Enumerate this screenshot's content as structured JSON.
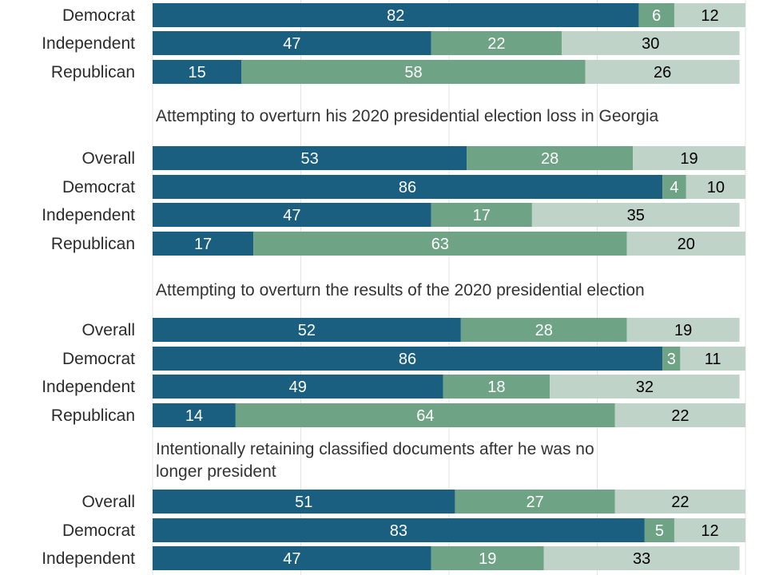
{
  "chart_data": {
    "type": "bar",
    "orientation": "horizontal",
    "stacked": true,
    "xlim": [
      0,
      100
    ],
    "colors": [
      "#1a5e80",
      "#6fa386",
      "#bfd3c8"
    ],
    "label_colors": [
      "#ffffff",
      "#ffffff",
      "#000000"
    ],
    "groups": [
      {
        "title": "",
        "rows": [
          {
            "label": "Democrat",
            "values": [
              82,
              6,
              12
            ]
          },
          {
            "label": "Independent",
            "values": [
              47,
              22,
              30
            ]
          },
          {
            "label": "Republican",
            "values": [
              15,
              58,
              26
            ]
          }
        ]
      },
      {
        "title": "Attempting to overturn his 2020 presidential election loss in Georgia",
        "rows": [
          {
            "label": "Overall",
            "values": [
              53,
              28,
              19
            ]
          },
          {
            "label": "Democrat",
            "values": [
              86,
              4,
              10
            ]
          },
          {
            "label": "Independent",
            "values": [
              47,
              17,
              35
            ]
          },
          {
            "label": "Republican",
            "values": [
              17,
              63,
              20
            ]
          }
        ]
      },
      {
        "title": "Attempting to overturn the results of the 2020 presidential election",
        "rows": [
          {
            "label": "Overall",
            "values": [
              52,
              28,
              19
            ]
          },
          {
            "label": "Democrat",
            "values": [
              86,
              3,
              11
            ]
          },
          {
            "label": "Independent",
            "values": [
              49,
              18,
              32
            ]
          },
          {
            "label": "Republican",
            "values": [
              14,
              64,
              22
            ]
          }
        ]
      },
      {
        "title": "Intentionally retaining classified documents after he was no longer president",
        "rows": [
          {
            "label": "Overall",
            "values": [
              51,
              27,
              22
            ]
          },
          {
            "label": "Democrat",
            "values": [
              83,
              5,
              12
            ]
          },
          {
            "label": "Independent",
            "values": [
              47,
              19,
              33
            ]
          }
        ]
      }
    ]
  }
}
